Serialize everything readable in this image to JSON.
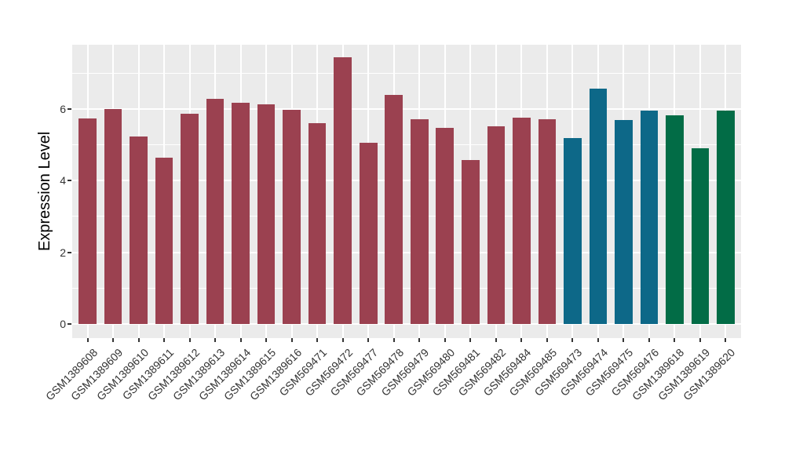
{
  "figure": {
    "background": "#FFFFFF",
    "panel_background": "#EBEBEB",
    "grid_color": "#FFFFFF",
    "axis_text_color": "#333333",
    "ylabel": "Expression Level"
  },
  "chart_data": {
    "type": "bar",
    "title": "",
    "xlabel": "",
    "ylabel": "Expression Level",
    "grid": true,
    "legend_position": "none",
    "ylim": [
      -0.37,
      7.79
    ],
    "yticks": [
      0,
      2,
      4,
      6
    ],
    "minor_yticks": [
      1,
      3,
      5,
      7
    ],
    "categories": [
      "GSM1389608",
      "GSM1389609",
      "GSM1389610",
      "GSM1389611",
      "GSM1389612",
      "GSM1389613",
      "GSM1389614",
      "GSM1389615",
      "GSM1389616",
      "GSM569471",
      "GSM569472",
      "GSM569477",
      "GSM569478",
      "GSM569479",
      "GSM569480",
      "GSM569481",
      "GSM569482",
      "GSM569484",
      "GSM569485",
      "GSM569473",
      "GSM569474",
      "GSM569475",
      "GSM569476",
      "GSM1389618",
      "GSM1389619",
      "GSM1389620"
    ],
    "values": [
      5.74,
      5.99,
      5.23,
      4.64,
      5.87,
      6.28,
      6.17,
      6.12,
      5.97,
      5.61,
      7.43,
      5.05,
      6.4,
      5.72,
      5.47,
      4.57,
      5.52,
      5.75,
      5.72,
      5.19,
      6.57,
      5.69,
      5.95,
      5.81,
      4.91,
      5.95
    ],
    "bar_groups": [
      "group1",
      "group1",
      "group1",
      "group1",
      "group1",
      "group1",
      "group1",
      "group1",
      "group1",
      "group1",
      "group1",
      "group1",
      "group1",
      "group1",
      "group1",
      "group1",
      "group1",
      "group1",
      "group1",
      "group2",
      "group2",
      "group2",
      "group2",
      "group3",
      "group3",
      "group3"
    ],
    "group_colors": {
      "group1": "#9B4150",
      "group2": "#0D6888",
      "group3": "#026C46"
    }
  }
}
